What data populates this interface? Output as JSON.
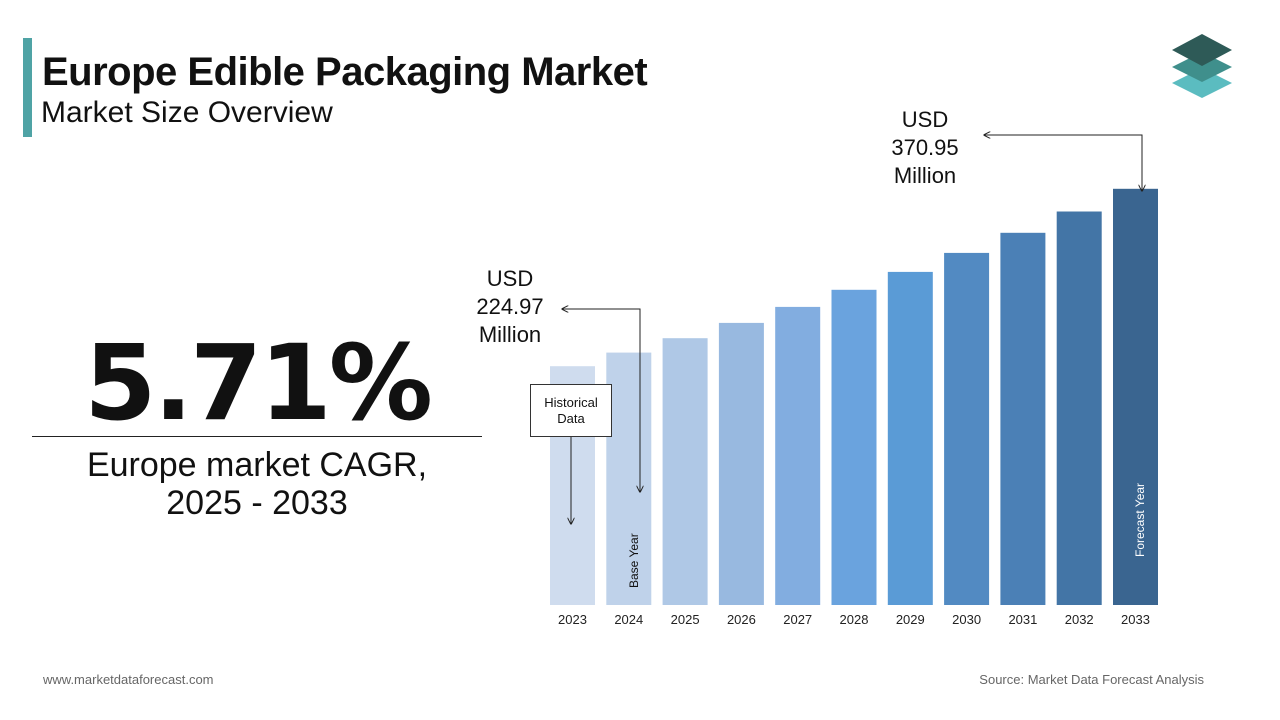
{
  "header": {
    "title": "Europe Edible Packaging Market",
    "subtitle": "Market Size Overview",
    "logo_icon": "layered-stack-icon"
  },
  "highlight": {
    "value": "5.71%",
    "label": "Europe market CAGR,\n2025 - 2033"
  },
  "annotations": {
    "historical": "Historical Data",
    "base_year": "Base Year",
    "forecast_year": "Forecast Year",
    "callout_2024": "USD\n224.97\nMillion",
    "callout_2033": "USD\n370.95\nMillion"
  },
  "footer": {
    "website": "www.marketdataforecast.com",
    "source": "Source: Market Data Forecast Analysis"
  },
  "colors": {
    "accent": "#4fa3a5",
    "bars": [
      "#cfdcee",
      "#bfd2ea",
      "#afc8e6",
      "#98b9e0",
      "#82ade0",
      "#6aa3de",
      "#5a9bd6",
      "#528ac2",
      "#4b80b6",
      "#4375a6",
      "#3a6590"
    ]
  },
  "chart_data": {
    "type": "bar",
    "categories": [
      "2023",
      "2024",
      "2025",
      "2026",
      "2027",
      "2028",
      "2029",
      "2030",
      "2031",
      "2032",
      "2033"
    ],
    "values": [
      212.8,
      224.97,
      237.8,
      251.4,
      265.7,
      280.9,
      296.9,
      313.8,
      331.7,
      350.7,
      370.95
    ],
    "ylim": [
      0,
      410
    ],
    "grid": false,
    "legend": "none"
  }
}
